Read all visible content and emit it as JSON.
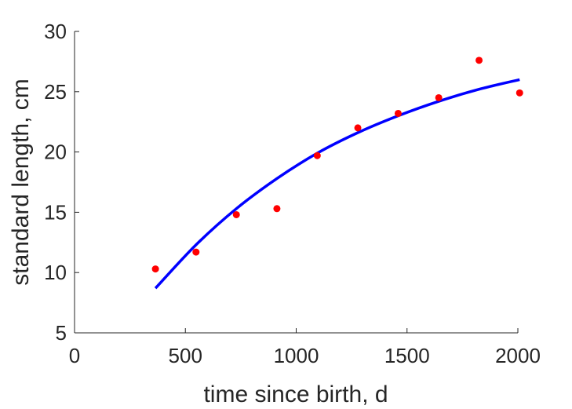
{
  "chart_data": {
    "type": "scatter",
    "title": "",
    "xlabel": "time since birth, d",
    "ylabel": "standard length, cm",
    "xlim": [
      0,
      2000
    ],
    "ylim": [
      5,
      30
    ],
    "xticks": [
      0,
      500,
      1000,
      1500,
      2000
    ],
    "yticks": [
      5,
      10,
      15,
      20,
      25,
      30
    ],
    "grid": false,
    "legend": "none",
    "series": [
      {
        "kind": "points",
        "color": "#ff0000",
        "x": [
          365,
          548,
          730,
          913,
          1095,
          1278,
          1460,
          1643,
          1825,
          2008
        ],
        "y": [
          10.3,
          11.7,
          14.8,
          15.3,
          19.7,
          22.0,
          23.2,
          24.5,
          27.6,
          24.9
        ]
      },
      {
        "kind": "line",
        "color": "#0000ff",
        "x": [
          365,
          548,
          730,
          913,
          1095,
          1278,
          1460,
          1643,
          1825,
          2008
        ],
        "y": [
          8.7,
          12.3,
          15.3,
          17.8,
          19.9,
          21.6,
          23.0,
          24.2,
          25.2,
          26.0
        ]
      }
    ]
  }
}
